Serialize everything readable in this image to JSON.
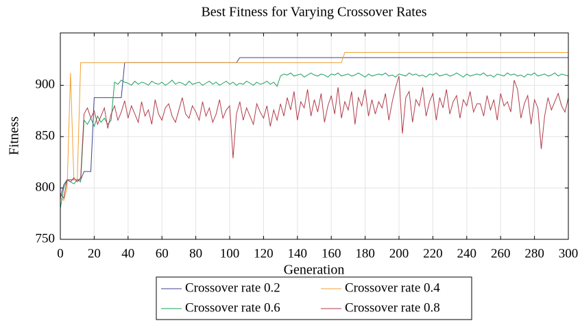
{
  "chart_data": {
    "type": "line",
    "title": "Best Fitness for Varying Crossover Rates",
    "x_label": "Generation",
    "y_label": "Fitness",
    "xlim": [
      0,
      300
    ],
    "xticks": [
      0,
      20,
      40,
      60,
      80,
      100,
      120,
      140,
      160,
      180,
      200,
      220,
      240,
      260,
      280,
      300
    ],
    "ylim": [
      750,
      951
    ],
    "yticks": [
      750,
      800,
      850,
      900
    ],
    "grid": true,
    "legend": "bottom",
    "x": [
      0,
      2,
      4,
      6,
      8,
      10,
      12,
      14,
      16,
      18,
      20,
      22,
      24,
      26,
      28,
      30,
      32,
      34,
      36,
      38,
      40,
      42,
      44,
      46,
      48,
      50,
      52,
      54,
      56,
      58,
      60,
      62,
      64,
      66,
      68,
      70,
      72,
      74,
      76,
      78,
      80,
      82,
      84,
      86,
      88,
      90,
      92,
      94,
      96,
      98,
      100,
      102,
      104,
      106,
      108,
      110,
      112,
      114,
      116,
      118,
      120,
      122,
      124,
      126,
      128,
      130,
      132,
      134,
      136,
      138,
      140,
      142,
      144,
      146,
      148,
      150,
      152,
      154,
      156,
      158,
      160,
      162,
      164,
      166,
      168,
      170,
      172,
      174,
      176,
      178,
      180,
      182,
      184,
      186,
      188,
      190,
      192,
      194,
      196,
      198,
      200,
      202,
      204,
      206,
      208,
      210,
      212,
      214,
      216,
      218,
      220,
      222,
      224,
      226,
      228,
      230,
      232,
      234,
      236,
      238,
      240,
      242,
      244,
      246,
      248,
      250,
      252,
      254,
      256,
      258,
      260,
      262,
      264,
      266,
      268,
      270,
      272,
      274,
      276,
      278,
      280,
      282,
      284,
      286,
      288,
      290,
      292,
      294,
      296,
      298,
      300
    ],
    "series": [
      {
        "name": "Crossover rate 0.2",
        "color": "#3f3f8f",
        "values": [
          790,
          803,
          808,
          808,
          808,
          808,
          808,
          816,
          816,
          816,
          888,
          888,
          888,
          888,
          888,
          888,
          888,
          888,
          888,
          922,
          922,
          922,
          922,
          922,
          922,
          922,
          922,
          922,
          922,
          922,
          922,
          922,
          922,
          922,
          922,
          922,
          922,
          922,
          922,
          922,
          922,
          922,
          922,
          922,
          922,
          922,
          922,
          922,
          922,
          922,
          922,
          922,
          922,
          927,
          927,
          927,
          927,
          927,
          927,
          927,
          927,
          927,
          927,
          927,
          927,
          927,
          927,
          927,
          927,
          927,
          927,
          927,
          927,
          927,
          927,
          927,
          927,
          927,
          927,
          927,
          927,
          927,
          927,
          927,
          927,
          927,
          927,
          927,
          927,
          927,
          927,
          927,
          927,
          927,
          927,
          927,
          927,
          927,
          927,
          927,
          927,
          927,
          927,
          927,
          927,
          927,
          927,
          927,
          927,
          927,
          927,
          927,
          927,
          927,
          927,
          927,
          927,
          927,
          927,
          927,
          927,
          927,
          927,
          927,
          927,
          927,
          927,
          927,
          927,
          927,
          927,
          927,
          927,
          927,
          927,
          927,
          927,
          927,
          927,
          927,
          927,
          927,
          927,
          927,
          927,
          927,
          927,
          927,
          927,
          927,
          927
        ]
      },
      {
        "name": "Crossover rate 0.4",
        "color": "#f0a030",
        "values": [
          790,
          788,
          800,
          912,
          808,
          808,
          922,
          922,
          922,
          922,
          922,
          922,
          922,
          922,
          922,
          922,
          922,
          922,
          922,
          922,
          922,
          922,
          922,
          922,
          922,
          922,
          922,
          922,
          922,
          922,
          922,
          922,
          922,
          922,
          922,
          922,
          922,
          922,
          922,
          922,
          922,
          922,
          922,
          922,
          922,
          922,
          922,
          922,
          922,
          922,
          922,
          922,
          922,
          922,
          922,
          922,
          922,
          922,
          922,
          922,
          922,
          922,
          922,
          922,
          922,
          922,
          922,
          922,
          922,
          922,
          922,
          922,
          922,
          922,
          922,
          922,
          922,
          922,
          922,
          922,
          922,
          922,
          922,
          922,
          932,
          932,
          932,
          932,
          932,
          932,
          932,
          932,
          932,
          932,
          932,
          932,
          932,
          932,
          932,
          932,
          932,
          932,
          932,
          932,
          932,
          932,
          932,
          932,
          932,
          932,
          932,
          932,
          932,
          932,
          932,
          932,
          932,
          932,
          932,
          932,
          932,
          932,
          932,
          932,
          932,
          932,
          932,
          932,
          932,
          932,
          932,
          932,
          932,
          932,
          932,
          932,
          932,
          932,
          932,
          932,
          932,
          932,
          932,
          932,
          932,
          932,
          932,
          932,
          932,
          932,
          932
        ]
      },
      {
        "name": "Crossover rate 0.6",
        "color": "#19a05a",
        "values": [
          780,
          800,
          808,
          806,
          804,
          808,
          806,
          866,
          862,
          868,
          860,
          870,
          864,
          868,
          862,
          866,
          903,
          901,
          905,
          903,
          902,
          900,
          904,
          901,
          903,
          902,
          900,
          904,
          902,
          901,
          903,
          900,
          902,
          905,
          901,
          903,
          902,
          900,
          904,
          901,
          902,
          903,
          900,
          902,
          904,
          901,
          903,
          900,
          902,
          904,
          901,
          903,
          900,
          902,
          901,
          904,
          902,
          900,
          903,
          901,
          902,
          904,
          901,
          903,
          899,
          909,
          911,
          910,
          912,
          909,
          910,
          911,
          908,
          910,
          912,
          910,
          909,
          911,
          910,
          908,
          911,
          910,
          912,
          909,
          910,
          911,
          909,
          910,
          912,
          910,
          908,
          911,
          909,
          910,
          911,
          910,
          912,
          909,
          910,
          908,
          911,
          910,
          909,
          912,
          910,
          911,
          909,
          910,
          908,
          911,
          910,
          912,
          909,
          910,
          911,
          909,
          910,
          912,
          910,
          908,
          911,
          909,
          910,
          911,
          910,
          912,
          909,
          910,
          908,
          911,
          910,
          909,
          912,
          910,
          911,
          909,
          910,
          908,
          911,
          910,
          912,
          909,
          910,
          911,
          909,
          910,
          912,
          909,
          911,
          910,
          909
        ]
      },
      {
        "name": "Crossover rate 0.8",
        "color": "#b03a48",
        "values": [
          795,
          790,
          808,
          806,
          810,
          806,
          810,
          872,
          878,
          868,
          875,
          862,
          870,
          878,
          858,
          872,
          880,
          866,
          874,
          885,
          868,
          880,
          872,
          864,
          884,
          870,
          876,
          862,
          886,
          872,
          866,
          878,
          882,
          870,
          864,
          876,
          888,
          872,
          868,
          880,
          874,
          866,
          884,
          870,
          878,
          864,
          872,
          886,
          868,
          876,
          880,
          829,
          872,
          884,
          866,
          878,
          870,
          862,
          882,
          874,
          868,
          880,
          860,
          876,
          866,
          882,
          870,
          888,
          876,
          894,
          866,
          884,
          878,
          896,
          870,
          886,
          874,
          892,
          864,
          880,
          890,
          872,
          898,
          868,
          884,
          876,
          894,
          862,
          888,
          880,
          896,
          870,
          886,
          872,
          884,
          878,
          892,
          866,
          884,
          898,
          909,
          853,
          888,
          894,
          864,
          886,
          880,
          898,
          870,
          884,
          892,
          866,
          888,
          878,
          896,
          872,
          884,
          890,
          868,
          886,
          880,
          894,
          874,
          882,
          882,
          870,
          890,
          876,
          886,
          866,
          892,
          880,
          884,
          874,
          905,
          896,
          868,
          882,
          890,
          862,
          886,
          878,
          838,
          870,
          888,
          876,
          884,
          892,
          880,
          874,
          888
        ]
      }
    ]
  }
}
